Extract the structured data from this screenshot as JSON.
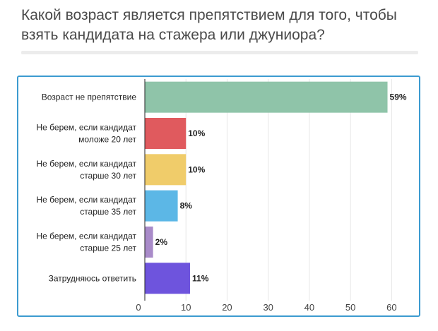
{
  "chart_data": {
    "type": "bar",
    "orientation": "horizontal",
    "title": "Какой возраст является препятствием для того, чтобы взять кандидата на стажера или джуниора?",
    "categories": [
      [
        "Возраст не препятствие"
      ],
      [
        "Не берем, если кандидат",
        "моложе 20 лет"
      ],
      [
        "Не берем, если кандидат",
        "старше 30 лет"
      ],
      [
        "Не берем, если кандидат",
        "старше 35 лет"
      ],
      [
        "Не берем, если кандидат",
        "старше 25 лет"
      ],
      [
        "Затрудняюсь ответить"
      ]
    ],
    "values": [
      59,
      10,
      10,
      8,
      2,
      11
    ],
    "value_labels": [
      "59%",
      "10%",
      "10%",
      "8%",
      "2%",
      "11%"
    ],
    "colors": [
      "#8fc4a9",
      "#e05a5e",
      "#f0cc6a",
      "#5cb7e6",
      "#a98bc9",
      "#6e54dd"
    ],
    "xlim": [
      0,
      62
    ],
    "xticks": [
      0,
      10,
      20,
      30,
      40,
      50,
      60
    ],
    "grid": true,
    "frame_color": "#3c9bd0"
  }
}
